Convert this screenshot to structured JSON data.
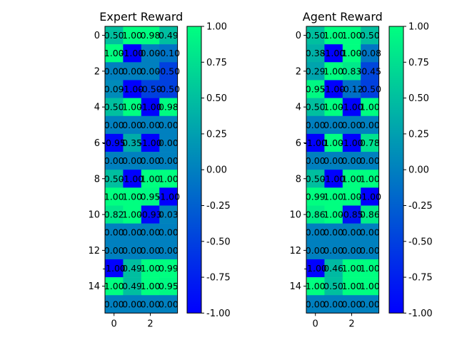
{
  "chart_data": [
    {
      "type": "heatmap",
      "title": "Expert Reward",
      "colormap": "winter",
      "vmin": -1,
      "vmax": 1,
      "xticks": [
        0,
        2
      ],
      "yticks": [
        0,
        2,
        4,
        6,
        8,
        10,
        12,
        14
      ],
      "colorbar_ticks": [
        "-1.00",
        "-0.75",
        "-0.50",
        "-0.25",
        "0.00",
        "0.25",
        "0.50",
        "0.75",
        "1.00"
      ],
      "values": [
        [
          0.5,
          1.0,
          0.98,
          0.49
        ],
        [
          1.0,
          -1.0,
          0.0,
          -0.1
        ],
        [
          0.0,
          0.0,
          0.0,
          -0.5
        ],
        [
          0.09,
          -1.0,
          -0.5,
          -0.5
        ],
        [
          0.5,
          1.0,
          -1.0,
          0.98
        ],
        [
          0.0,
          0.0,
          0.0,
          0.0
        ],
        [
          -0.95,
          0.35,
          -1.0,
          0.0
        ],
        [
          0.0,
          0.0,
          0.0,
          0.0
        ],
        [
          0.5,
          -1.0,
          1.0,
          1.0
        ],
        [
          1.0,
          1.0,
          0.95,
          -1.0
        ],
        [
          0.82,
          1.0,
          -0.93,
          0.03
        ],
        [
          0.0,
          0.0,
          0.0,
          0.0
        ],
        [
          0.0,
          0.0,
          0.0,
          0.0
        ],
        [
          -1.0,
          0.49,
          1.0,
          0.99
        ],
        [
          1.0,
          0.49,
          1.0,
          0.95
        ],
        [
          0.0,
          0.0,
          0.0,
          0.0
        ]
      ],
      "labels": [
        [
          "0.50",
          "1.00",
          "0.98",
          "0.49"
        ],
        [
          "1.00",
          "-1.00",
          "0.00",
          "-0.10"
        ],
        [
          "0.00",
          "0.00",
          "0.00",
          "-0.50"
        ],
        [
          "0.09",
          "-1.00",
          "-0.50",
          "-0.50"
        ],
        [
          "0.50",
          "1.00",
          "-1.00",
          "0.98"
        ],
        [
          "0.00",
          "0.00",
          "0.00",
          "0.00"
        ],
        [
          "-0.95",
          "0.35",
          "-1.00",
          "0.00"
        ],
        [
          "0.00",
          "0.00",
          "0.00",
          "0.00"
        ],
        [
          "0.50",
          "-1.00",
          "1.00",
          "1.00"
        ],
        [
          "1.00",
          "1.00",
          "0.95",
          "-1.00"
        ],
        [
          "0.82",
          "1.00",
          "-0.93",
          "0.03"
        ],
        [
          "0.00",
          "0.00",
          "0.00",
          "0.00"
        ],
        [
          "0.00",
          "0.00",
          "0.00",
          "0.00"
        ],
        [
          "-1.00",
          "0.49",
          "1.00",
          "0.99"
        ],
        [
          "1.00",
          "0.49",
          "1.00",
          "0.95"
        ],
        [
          "0.00",
          "0.00",
          "0.00",
          "0.00"
        ]
      ]
    },
    {
      "type": "heatmap",
      "title": "Agent Reward",
      "colormap": "winter",
      "vmin": -1,
      "vmax": 1,
      "xticks": [
        0,
        2
      ],
      "yticks": [
        0,
        2,
        4,
        6,
        8,
        10,
        12,
        14
      ],
      "colorbar_ticks": [
        "-1.00",
        "-0.75",
        "-0.50",
        "-0.25",
        "0.00",
        "0.25",
        "0.50",
        "0.75",
        "1.00"
      ],
      "values": [
        [
          0.5,
          1.0,
          1.0,
          0.5
        ],
        [
          0.38,
          -1.0,
          1.0,
          -0.08
        ],
        [
          0.29,
          1.0,
          0.83,
          -0.45
        ],
        [
          0.95,
          -1.0,
          -0.12,
          -0.5
        ],
        [
          0.5,
          1.0,
          -1.0,
          1.0
        ],
        [
          0.0,
          0.0,
          0.0,
          0.0
        ],
        [
          -1.0,
          1.0,
          -1.0,
          0.78
        ],
        [
          0.0,
          0.0,
          0.0,
          0.0
        ],
        [
          0.5,
          -1.0,
          1.0,
          1.0
        ],
        [
          0.99,
          1.0,
          1.0,
          -1.0
        ],
        [
          0.86,
          1.0,
          -0.85,
          0.86
        ],
        [
          0.0,
          0.0,
          0.0,
          0.0
        ],
        [
          0.0,
          0.0,
          0.0,
          0.0
        ],
        [
          -1.0,
          0.46,
          1.0,
          1.0
        ],
        [
          1.0,
          0.5,
          1.0,
          1.0
        ],
        [
          0.0,
          0.0,
          0.0,
          0.0
        ]
      ],
      "labels": [
        [
          "0.50",
          "1.00",
          "1.00",
          "0.50"
        ],
        [
          "0.38",
          "-1.00",
          "1.00",
          "-0.08"
        ],
        [
          "0.29",
          "1.00",
          "0.83",
          "-0.45"
        ],
        [
          "0.95",
          "-1.00",
          "-0.12",
          "-0.50"
        ],
        [
          "0.50",
          "1.00",
          "-1.00",
          "1.00"
        ],
        [
          "0.00",
          "0.00",
          "0.00",
          "0.00"
        ],
        [
          "-1.00",
          "1.00",
          "-1.00",
          "0.78"
        ],
        [
          "0.00",
          "0.00",
          "0.00",
          "0.00"
        ],
        [
          "0.50",
          "-1.00",
          "1.00",
          "1.00"
        ],
        [
          "0.99",
          "1.00",
          "1.00",
          "-1.00"
        ],
        [
          "0.86",
          "1.00",
          "-0.85",
          "0.86"
        ],
        [
          "0.00",
          "0.00",
          "0.00",
          "0.00"
        ],
        [
          "0.00",
          "0.00",
          "0.00",
          "0.00"
        ],
        [
          "-1.00",
          "0.46",
          "1.00",
          "1.00"
        ],
        [
          "1.00",
          "0.50",
          "1.00",
          "1.00"
        ],
        [
          "0.00",
          "0.00",
          "0.00",
          "0.00"
        ]
      ]
    }
  ]
}
